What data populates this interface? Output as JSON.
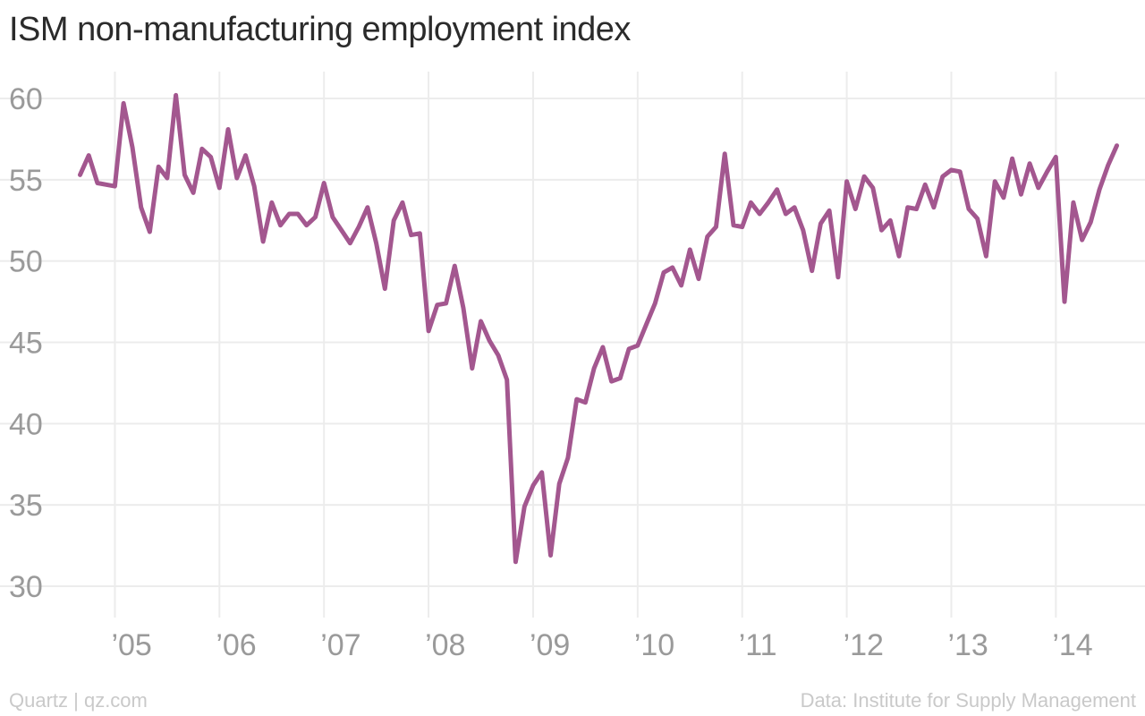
{
  "title": "ISM non-manufacturing employment index",
  "footer": {
    "source_left": "Quartz | qz.com",
    "source_right": "Data: Institute for Supply Management"
  },
  "colors": {
    "line": "#a3578f",
    "grid": "#ececec",
    "tick_text": "#9a9a9a",
    "title": "#2b2b2b",
    "footer": "#c9c9c9"
  },
  "chart_data": {
    "type": "line",
    "title": "ISM non-manufacturing employment index",
    "xlabel": "",
    "ylabel": "",
    "ylim": [
      30,
      60
    ],
    "grid": true,
    "yticks": [
      30,
      35,
      40,
      45,
      50,
      55,
      60
    ],
    "xticks": [
      {
        "label": "’05",
        "value": 2005
      },
      {
        "label": "’06",
        "value": 2006
      },
      {
        "label": "’07",
        "value": 2007
      },
      {
        "label": "’08",
        "value": 2008
      },
      {
        "label": "’09",
        "value": 2009
      },
      {
        "label": "’10",
        "value": 2010
      },
      {
        "label": "’11",
        "value": 2011
      },
      {
        "label": "’12",
        "value": 2012
      },
      {
        "label": "’13",
        "value": 2013
      },
      {
        "label": "’14",
        "value": 2014
      }
    ],
    "xlim": [
      2004.5,
      2014.75
    ],
    "series": [
      {
        "color": "#a3578f",
        "points": [
          [
            2004.667,
            55.3
          ],
          [
            2004.75,
            56.5
          ],
          [
            2004.833,
            54.8
          ],
          [
            2004.917,
            54.7
          ],
          [
            2005.0,
            54.6
          ],
          [
            2005.083,
            59.7
          ],
          [
            2005.167,
            57.0
          ],
          [
            2005.25,
            53.3
          ],
          [
            2005.333,
            51.8
          ],
          [
            2005.417,
            55.8
          ],
          [
            2005.5,
            55.1
          ],
          [
            2005.583,
            60.2
          ],
          [
            2005.667,
            55.3
          ],
          [
            2005.75,
            54.2
          ],
          [
            2005.833,
            56.9
          ],
          [
            2005.917,
            56.4
          ],
          [
            2006.0,
            54.5
          ],
          [
            2006.083,
            58.1
          ],
          [
            2006.167,
            55.1
          ],
          [
            2006.25,
            56.5
          ],
          [
            2006.333,
            54.6
          ],
          [
            2006.417,
            51.2
          ],
          [
            2006.5,
            53.6
          ],
          [
            2006.583,
            52.2
          ],
          [
            2006.667,
            52.9
          ],
          [
            2006.75,
            52.9
          ],
          [
            2006.833,
            52.2
          ],
          [
            2006.917,
            52.7
          ],
          [
            2007.0,
            54.8
          ],
          [
            2007.083,
            52.7
          ],
          [
            2007.167,
            51.9
          ],
          [
            2007.25,
            51.1
          ],
          [
            2007.333,
            52.1
          ],
          [
            2007.417,
            53.3
          ],
          [
            2007.5,
            51.1
          ],
          [
            2007.583,
            48.3
          ],
          [
            2007.667,
            52.5
          ],
          [
            2007.75,
            53.6
          ],
          [
            2007.833,
            51.6
          ],
          [
            2007.917,
            51.7
          ],
          [
            2008.0,
            45.7
          ],
          [
            2008.083,
            47.3
          ],
          [
            2008.167,
            47.4
          ],
          [
            2008.25,
            49.7
          ],
          [
            2008.333,
            47.1
          ],
          [
            2008.417,
            43.4
          ],
          [
            2008.5,
            46.3
          ],
          [
            2008.583,
            45.1
          ],
          [
            2008.667,
            44.2
          ],
          [
            2008.75,
            42.7
          ],
          [
            2008.833,
            31.5
          ],
          [
            2008.917,
            34.9
          ],
          [
            2009.0,
            36.2
          ],
          [
            2009.083,
            37.0
          ],
          [
            2009.167,
            31.9
          ],
          [
            2009.25,
            36.3
          ],
          [
            2009.333,
            37.9
          ],
          [
            2009.417,
            41.5
          ],
          [
            2009.5,
            41.3
          ],
          [
            2009.583,
            43.4
          ],
          [
            2009.667,
            44.7
          ],
          [
            2009.75,
            42.6
          ],
          [
            2009.833,
            42.8
          ],
          [
            2009.917,
            44.6
          ],
          [
            2010.0,
            44.8
          ],
          [
            2010.083,
            46.1
          ],
          [
            2010.167,
            47.4
          ],
          [
            2010.25,
            49.3
          ],
          [
            2010.333,
            49.6
          ],
          [
            2010.417,
            48.5
          ],
          [
            2010.5,
            50.7
          ],
          [
            2010.583,
            48.9
          ],
          [
            2010.667,
            51.5
          ],
          [
            2010.75,
            52.1
          ],
          [
            2010.833,
            56.6
          ],
          [
            2010.917,
            52.2
          ],
          [
            2011.0,
            52.1
          ],
          [
            2011.083,
            53.6
          ],
          [
            2011.167,
            52.9
          ],
          [
            2011.25,
            53.6
          ],
          [
            2011.333,
            54.4
          ],
          [
            2011.417,
            52.9
          ],
          [
            2011.5,
            53.3
          ],
          [
            2011.583,
            51.9
          ],
          [
            2011.667,
            49.4
          ],
          [
            2011.75,
            52.3
          ],
          [
            2011.833,
            53.1
          ],
          [
            2011.917,
            49.0
          ],
          [
            2012.0,
            54.9
          ],
          [
            2012.083,
            53.2
          ],
          [
            2012.167,
            55.2
          ],
          [
            2012.25,
            54.5
          ],
          [
            2012.333,
            51.9
          ],
          [
            2012.417,
            52.5
          ],
          [
            2012.5,
            50.3
          ],
          [
            2012.583,
            53.3
          ],
          [
            2012.667,
            53.2
          ],
          [
            2012.75,
            54.7
          ],
          [
            2012.833,
            53.3
          ],
          [
            2012.917,
            55.2
          ],
          [
            2013.0,
            55.6
          ],
          [
            2013.083,
            55.5
          ],
          [
            2013.167,
            53.2
          ],
          [
            2013.25,
            52.6
          ],
          [
            2013.333,
            50.3
          ],
          [
            2013.417,
            54.9
          ],
          [
            2013.5,
            53.9
          ],
          [
            2013.583,
            56.3
          ],
          [
            2013.667,
            54.1
          ],
          [
            2013.75,
            56.0
          ],
          [
            2013.833,
            54.5
          ],
          [
            2013.917,
            55.5
          ],
          [
            2014.0,
            56.4
          ],
          [
            2014.083,
            47.5
          ],
          [
            2014.167,
            53.6
          ],
          [
            2014.25,
            51.3
          ],
          [
            2014.333,
            52.4
          ],
          [
            2014.417,
            54.4
          ],
          [
            2014.5,
            55.9
          ],
          [
            2014.583,
            57.1
          ]
        ]
      }
    ]
  }
}
